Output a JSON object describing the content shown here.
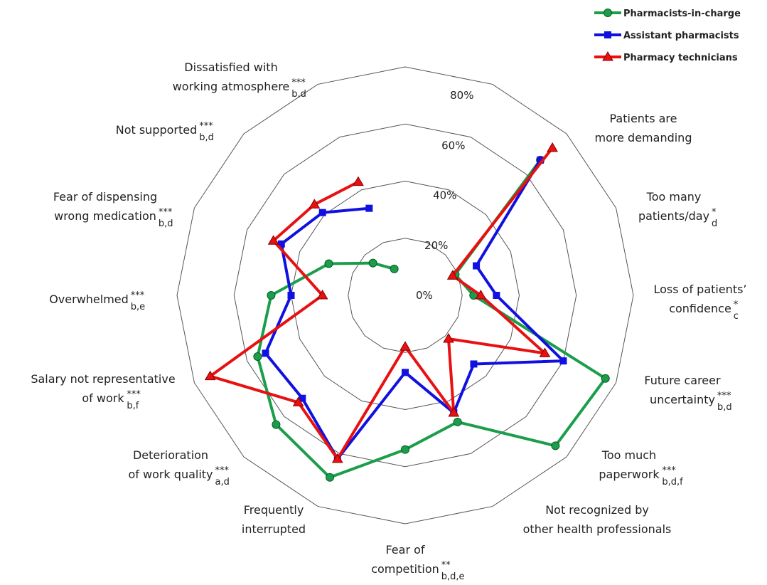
{
  "chart_data": {
    "type": "radar",
    "categories": [
      null,
      null,
      "Patients are\nmore demanding",
      "Too many\npatients/day",
      "Loss of patients’\nconfidence",
      "Future career\nuncertainty",
      "Too much\npaperwork",
      "Not recognized by\nother health professionals",
      "Fear of\ncompetition",
      "Frequently\ninterrupted",
      "Deterioration\nof work quality",
      "Salary not representative\nof work",
      "Overwhelmed",
      "Fear of dispensing\nwrong medication",
      "Not supported",
      "Dissatisfied with\nworking atmosphere"
    ],
    "significance": [
      null,
      null,
      null,
      "*",
      "*",
      "***",
      "***",
      null,
      "**",
      null,
      "***",
      "***",
      "***",
      "***",
      "***",
      "***"
    ],
    "groups": [
      null,
      null,
      null,
      "d",
      "c",
      "b,d",
      "b,d,f",
      null,
      "b,d,e",
      null,
      "a,d",
      "b,f",
      "b,e",
      "b,d",
      "b,d",
      "b,d"
    ],
    "series": [
      {
        "name": "Pharmacists-in-charge",
        "color": "#1a9e4a",
        "marker": "circle",
        "values": [
          null,
          null,
          67,
          19,
          24,
          76,
          74.5,
          48,
          54,
          69,
          64,
          56,
          47,
          29,
          16,
          10
        ]
      },
      {
        "name": "Assistant pharmacists",
        "color": "#1010e0",
        "marker": "square",
        "values": [
          null,
          null,
          67,
          27,
          32,
          60,
          34,
          44.5,
          27,
          62,
          51,
          53,
          40,
          47,
          41,
          33
        ]
      },
      {
        "name": "Pharmacy technicians",
        "color": "#e81010",
        "marker": "triangle",
        "values": [
          null,
          null,
          73,
          18,
          26.5,
          53,
          21.5,
          44.5,
          18,
          62,
          53,
          74,
          29,
          50,
          45,
          43
        ]
      }
    ],
    "ylim": [
      0,
      80
    ],
    "yticks": [
      {
        "value": 0,
        "label": "0%"
      },
      {
        "value": 20,
        "label": "20%"
      },
      {
        "value": 40,
        "label": "40%"
      },
      {
        "value": 60,
        "label": "60%"
      },
      {
        "value": 80,
        "label": "80%"
      }
    ],
    "grid": true,
    "legend": "top-right"
  }
}
